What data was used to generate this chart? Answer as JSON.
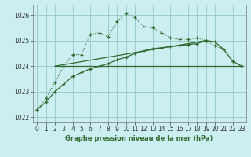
{
  "title": "Graphe pression niveau de la mer (hPa)",
  "bg_color": "#cceef0",
  "grid_color": "#99cccc",
  "line_color": "#2d6a2d",
  "xlim": [
    -0.5,
    23.5
  ],
  "ylim": [
    1021.8,
    1026.4
  ],
  "yticks": [
    1022,
    1023,
    1024,
    1025,
    1026
  ],
  "xticks": [
    0,
    1,
    2,
    3,
    4,
    5,
    6,
    7,
    8,
    9,
    10,
    11,
    12,
    13,
    14,
    15,
    16,
    17,
    18,
    19,
    20,
    21,
    22,
    23
  ],
  "series1_x": [
    0,
    1,
    2,
    3,
    4,
    5,
    6,
    7,
    8,
    9,
    10,
    11,
    12,
    13,
    14,
    15,
    16,
    17,
    18,
    19,
    20,
    21,
    22,
    23
  ],
  "series1_y": [
    1022.3,
    1022.75,
    1023.35,
    1024.0,
    1024.45,
    1024.45,
    1025.25,
    1025.3,
    1025.15,
    1025.75,
    1026.05,
    1025.9,
    1025.55,
    1025.5,
    1025.3,
    1025.1,
    1025.05,
    1025.05,
    1025.1,
    1025.0,
    1024.8,
    1024.65,
    1024.2,
    1024.0
  ],
  "series2_x": [
    0,
    1,
    2,
    3,
    4,
    5,
    6,
    7,
    8,
    9,
    10,
    11,
    12,
    13,
    14,
    15,
    16,
    17,
    18,
    19,
    20,
    21,
    22,
    23
  ],
  "series2_y": [
    1022.3,
    1022.6,
    1023.0,
    1023.3,
    1023.6,
    1023.75,
    1023.9,
    1024.0,
    1024.1,
    1024.25,
    1024.35,
    1024.5,
    1024.6,
    1024.68,
    1024.72,
    1024.76,
    1024.8,
    1024.84,
    1024.88,
    1025.0,
    1024.95,
    1024.65,
    1024.2,
    1024.0
  ],
  "series3_x": [
    2,
    23
  ],
  "series3_y": [
    1024.0,
    1024.0
  ],
  "series4_x": [
    2,
    19
  ],
  "series4_y": [
    1024.0,
    1025.0
  ]
}
